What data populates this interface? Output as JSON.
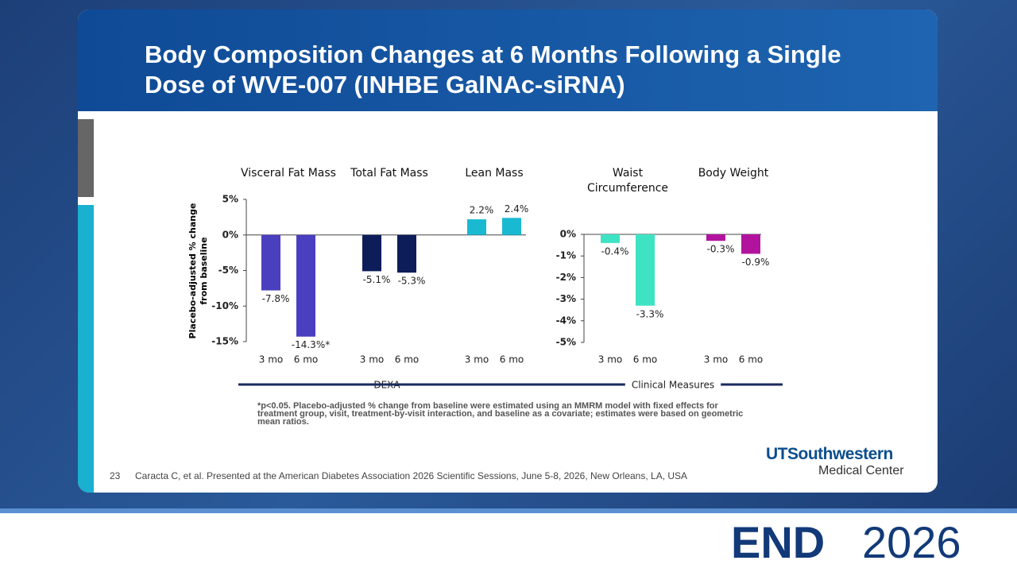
{
  "slide": {
    "title": "Body Composition Changes at 6 Months Following a Single Dose of WVE-007 (INHBE GalNAc-siRNA)",
    "footnote": "*p<0.05. Placebo-adjusted % change from baseline were estimated using an MMRM model with fixed effects for treatment group, visit, treatment-by-visit interaction, and baseline   as a covariate; estimates were based on geometric mean ratios.",
    "page_number": "23",
    "citation": "Caracta C, et al. Presented at the American Diabetes Association 2026 Scientific Sessions, June 5-8, 2026, New Orleans, LA, USA",
    "logo_main": "UTSouthwestern",
    "logo_sub": "Medical Center",
    "event_left": "END",
    "event_right": "2026"
  },
  "chart_data": [
    {
      "type": "bar",
      "ylabel": "Placebo-adjusted % change from baseline",
      "section": "DEXA",
      "ylim": [
        -15,
        5
      ],
      "yticks": [
        {
          "value": 5,
          "label": "5%"
        },
        {
          "value": 0,
          "label": "0%"
        },
        {
          "value": -5,
          "label": "-5%"
        },
        {
          "value": -10,
          "label": "-10%"
        },
        {
          "value": -15,
          "label": "-15%"
        }
      ],
      "groups": [
        {
          "name": "Visceral Fat Mass",
          "color": "#4a3fbf",
          "categories": [
            "3 mo",
            "6 mo"
          ],
          "values": [
            -7.8,
            -14.3
          ],
          "value_labels": [
            "-7.8%",
            "-14.3%*"
          ]
        },
        {
          "name": "Total Fat Mass",
          "color": "#0c1d5a",
          "categories": [
            "3 mo",
            "6 mo"
          ],
          "values": [
            -5.1,
            -5.3
          ],
          "value_labels": [
            "-5.1%",
            "-5.3%"
          ]
        },
        {
          "name": "Lean Mass",
          "color": "#19b9d2",
          "categories": [
            "3 mo",
            "6 mo"
          ],
          "values": [
            2.2,
            2.4
          ],
          "value_labels": [
            "2.2%",
            "2.4%"
          ]
        }
      ]
    },
    {
      "type": "bar",
      "section": "Clinical Measures",
      "ylim": [
        -5,
        0
      ],
      "yticks": [
        {
          "value": 0,
          "label": "0%"
        },
        {
          "value": -1,
          "label": "-1%"
        },
        {
          "value": -2,
          "label": "-2%"
        },
        {
          "value": -3,
          "label": "-3%"
        },
        {
          "value": -4,
          "label": "-4%"
        },
        {
          "value": -5,
          "label": "-5%"
        }
      ],
      "groups": [
        {
          "name": "Waist Circumference",
          "color": "#3ee3c3",
          "categories": [
            "3 mo",
            "6 mo"
          ],
          "values": [
            -0.4,
            -3.3
          ],
          "value_labels": [
            "-0.4%",
            "-3.3%"
          ]
        },
        {
          "name": "Body Weight",
          "color": "#b2139e",
          "categories": [
            "3 mo",
            "6 mo"
          ],
          "values": [
            -0.3,
            -0.9
          ],
          "value_labels": [
            "-0.3%",
            "-0.9%"
          ]
        }
      ]
    }
  ]
}
